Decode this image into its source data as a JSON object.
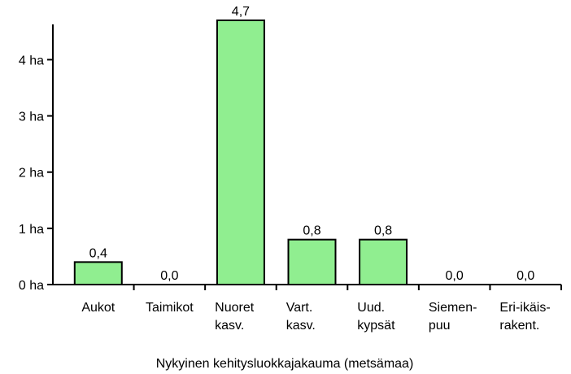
{
  "chart_data": {
    "type": "bar",
    "x_label": "Nykyinen kehitysluokkajakauma (metsämaa)",
    "categories": [
      [
        "Aukot"
      ],
      [
        "Taimikot"
      ],
      [
        "Nuoret",
        "kasv."
      ],
      [
        "Vart.",
        "kasv."
      ],
      [
        "Uud.",
        "kypsät"
      ],
      [
        "Siemen-",
        "puu"
      ],
      [
        "Eri-ikäis-",
        "rakent."
      ]
    ],
    "values": [
      0.4,
      0,
      4.7,
      0.8,
      0.8,
      0,
      0
    ],
    "value_labels": [
      "0,4",
      "0,0",
      "4,7",
      "0,8",
      "0,8",
      "0,0",
      "0,0"
    ],
    "color": "#90ee90",
    "ylim": [
      0,
      4.7
    ],
    "yticks": [
      {
        "value": 0,
        "label": "0 ha"
      },
      {
        "value": 1,
        "label": "1 ha"
      },
      {
        "value": 2,
        "label": "2 ha"
      },
      {
        "value": 3,
        "label": "3 ha"
      },
      {
        "value": 4,
        "label": "4 ha"
      }
    ]
  }
}
